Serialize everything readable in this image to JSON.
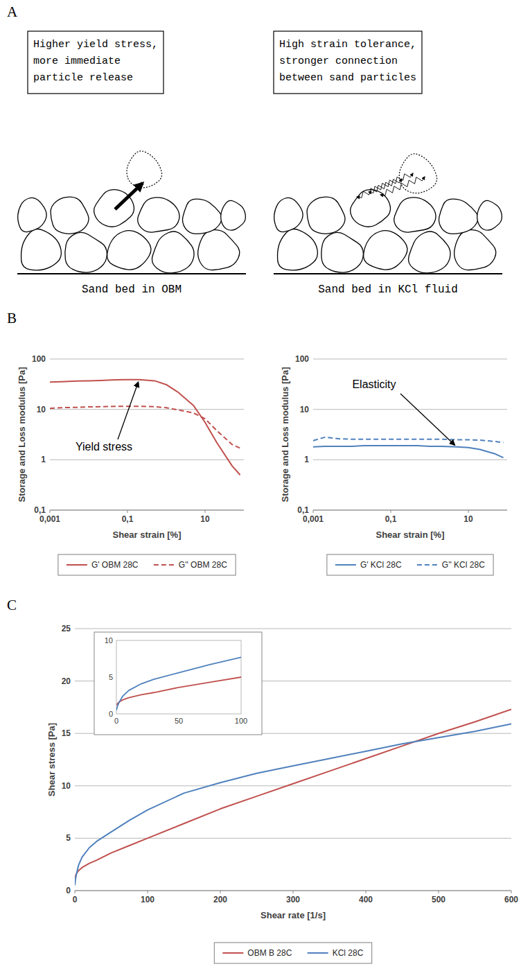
{
  "diagram": {
    "panel": "A",
    "beds": [
      {
        "note": [
          "Higher yield stress,",
          "more immediate",
          "particle release"
        ],
        "caption": "Sand bed in OBM"
      },
      {
        "note": [
          "High strain tolerance,",
          "stronger connection",
          "between sand particles"
        ],
        "caption": "Sand bed in KCl fluid"
      }
    ]
  },
  "chart_data": [
    {
      "panel": "B",
      "type": "line",
      "log": true,
      "grid": true,
      "legend": "bottom",
      "x_label": "Shear strain [%]",
      "y_label": "Storage and Loss modulus [Pa]",
      "x": [
        0.001,
        0.002,
        0.005,
        0.01,
        0.02,
        0.05,
        0.1,
        0.2,
        0.5,
        1,
        2,
        5,
        10,
        20,
        50,
        80
      ],
      "xlim": [
        0.001,
        100
      ],
      "xticks": [
        {
          "value": 0.001,
          "label": "0,001"
        },
        {
          "value": 0.1,
          "label": "0,1"
        },
        10
      ],
      "ylim": [
        0.1,
        100
      ],
      "yticks": [
        {
          "value": 0.1,
          "label": "0,1"
        },
        1,
        10,
        100
      ],
      "series": [
        {
          "name": "G' OBM 28C",
          "color": "#c0504d",
          "line_style": "solid",
          "values": [
            35,
            35.5,
            36.5,
            37,
            37.5,
            38.5,
            39,
            39,
            37,
            31,
            22,
            12,
            5.5,
            2.2,
            0.75,
            0.5
          ]
        },
        {
          "name": "G'' OBM 28C",
          "color": "#c0504d",
          "line_style": "dashed",
          "values": [
            10.5,
            10.8,
            11,
            11.2,
            11.3,
            11.5,
            11.5,
            11.5,
            11.3,
            10.8,
            9.8,
            8.5,
            6.5,
            3.8,
            2.0,
            1.7
          ]
        }
      ],
      "annotations": [
        {
          "text": "Yield stress",
          "x": 0.2,
          "y": 39
        }
      ]
    },
    {
      "type": "line",
      "log": true,
      "grid": true,
      "legend": "bottom",
      "x_label": "Shear strain [%]",
      "y_label": "Storage and Loss modulus [Pa]",
      "x": [
        0.001,
        0.002,
        0.005,
        0.01,
        0.02,
        0.05,
        0.1,
        0.2,
        0.5,
        1,
        2,
        5,
        10,
        20,
        50,
        80
      ],
      "xlim": [
        0.001,
        100
      ],
      "xticks": [
        {
          "value": 0.001,
          "label": "0,001"
        },
        {
          "value": 0.1,
          "label": "0,1"
        },
        10
      ],
      "ylim": [
        0.1,
        100
      ],
      "yticks": [
        {
          "value": 0.1,
          "label": "0,1"
        },
        1,
        10,
        100
      ],
      "series": [
        {
          "name": "G' KCl 28C",
          "color": "#4f81bd",
          "line_style": "solid",
          "values": [
            1.8,
            1.85,
            1.85,
            1.85,
            1.9,
            1.9,
            1.9,
            1.9,
            1.9,
            1.85,
            1.85,
            1.8,
            1.75,
            1.6,
            1.3,
            1.1
          ]
        },
        {
          "name": "G'' KCl 28C",
          "color": "#4f81bd",
          "line_style": "dashed",
          "values": [
            2.4,
            2.8,
            2.6,
            2.55,
            2.55,
            2.55,
            2.55,
            2.55,
            2.55,
            2.55,
            2.55,
            2.5,
            2.5,
            2.45,
            2.3,
            2.2
          ]
        }
      ],
      "annotations": [
        {
          "text": "Elasticity",
          "x": 5,
          "y": 1.8
        }
      ]
    },
    {
      "panel": "C",
      "type": "line",
      "grid": true,
      "legend": "bottom",
      "x_label": "Shear rate [1/s]",
      "y_label": "Shear stress [Pa]",
      "x": [
        0,
        1,
        2,
        5,
        10,
        20,
        30,
        50,
        75,
        100,
        150,
        200,
        250,
        300,
        350,
        400,
        450,
        500,
        550,
        600
      ],
      "xlim": [
        0,
        600
      ],
      "xticks": [
        0,
        100,
        200,
        300,
        400,
        500,
        600
      ],
      "ylim": [
        0,
        25
      ],
      "yticks": [
        0,
        5,
        10,
        15,
        20,
        25
      ],
      "series": [
        {
          "name": "OBM B 28C",
          "color": "#c0504d",
          "line_style": "solid",
          "values": [
            1.2,
            1.4,
            1.6,
            1.9,
            2.2,
            2.6,
            2.9,
            3.6,
            4.3,
            5.0,
            6.4,
            7.8,
            9.0,
            10.2,
            11.4,
            12.6,
            13.8,
            15.0,
            16.1,
            17.3
          ]
        },
        {
          "name": "KCl 28C",
          "color": "#4f81bd",
          "line_style": "solid",
          "values": [
            0.5,
            1.1,
            1.5,
            2.4,
            3.2,
            4.1,
            4.7,
            5.6,
            6.7,
            7.7,
            9.3,
            10.3,
            11.2,
            11.9,
            12.6,
            13.3,
            14.0,
            14.6,
            15.2,
            15.9
          ]
        }
      ],
      "inset": {
        "xlim": [
          0,
          100
        ],
        "xticks": [
          0,
          50,
          100
        ],
        "ylim": [
          0,
          10
        ],
        "yticks": [
          0,
          5,
          10
        ]
      }
    }
  ]
}
